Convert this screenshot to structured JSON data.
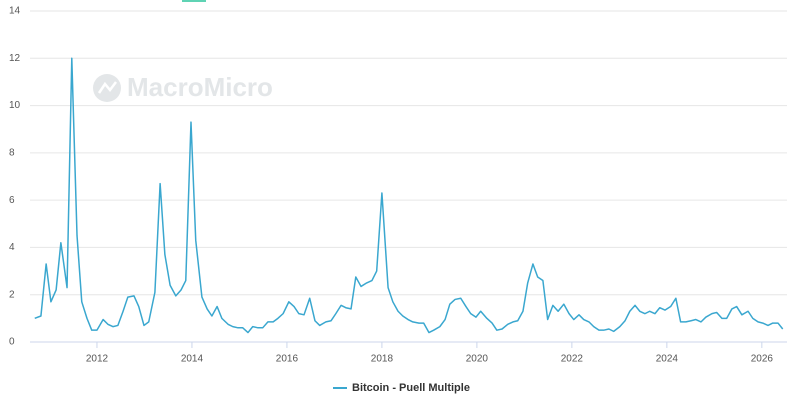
{
  "chart_data": {
    "type": "line",
    "watermark": "MacroMicro",
    "x": [
      2010.69,
      2010.82,
      2010.93,
      2011.03,
      2011.14,
      2011.24,
      2011.37,
      2011.47,
      2011.58,
      2011.68,
      2011.79,
      2011.89,
      2012.0,
      2012.13,
      2012.23,
      2012.34,
      2012.44,
      2012.55,
      2012.65,
      2012.78,
      2012.88,
      2012.99,
      2013.09,
      2013.22,
      2013.33,
      2013.43,
      2013.54,
      2013.66,
      2013.77,
      2013.87,
      2013.98,
      2014.08,
      2014.21,
      2014.32,
      2014.42,
      2014.53,
      2014.63,
      2014.76,
      2014.86,
      2014.97,
      2015.07,
      2015.18,
      2015.28,
      2015.39,
      2015.49,
      2015.6,
      2015.71,
      2015.81,
      2015.92,
      2016.04,
      2016.15,
      2016.25,
      2016.36,
      2016.48,
      2016.59,
      2016.69,
      2016.82,
      2016.93,
      2017.03,
      2017.14,
      2017.24,
      2017.35,
      2017.45,
      2017.56,
      2017.68,
      2017.79,
      2017.89,
      2018.0,
      2018.13,
      2018.23,
      2018.34,
      2018.44,
      2018.55,
      2018.65,
      2018.78,
      2018.88,
      2018.99,
      2019.09,
      2019.22,
      2019.33,
      2019.43,
      2019.54,
      2019.66,
      2019.77,
      2019.87,
      2019.98,
      2020.08,
      2020.21,
      2020.32,
      2020.42,
      2020.53,
      2020.65,
      2020.76,
      2020.86,
      2020.97,
      2021.07,
      2021.18,
      2021.28,
      2021.39,
      2021.49,
      2021.6,
      2021.71,
      2021.83,
      2021.94,
      2022.04,
      2022.15,
      2022.25,
      2022.36,
      2022.46,
      2022.57,
      2022.67,
      2022.78,
      2022.88,
      2023.01,
      2023.12,
      2023.22,
      2023.33,
      2023.43,
      2023.54,
      2023.64,
      2023.75,
      2023.85,
      2023.96,
      2024.08,
      2024.19,
      2024.29,
      2024.4,
      2024.51,
      2024.61,
      2024.72,
      2024.82,
      2024.95,
      2025.05,
      2025.16,
      2025.26,
      2025.37,
      2025.47,
      2025.58,
      2025.71,
      2025.81,
      2025.92,
      2026.02,
      2026.13,
      2026.23,
      2026.34,
      2026.44
    ],
    "series": [
      {
        "name": "Bitcoin - Puell Multiple",
        "color": "#3aa7cf",
        "values": [
          1.0,
          1.1,
          3.3,
          1.7,
          2.2,
          4.2,
          2.3,
          12.0,
          4.5,
          1.7,
          1.0,
          0.5,
          0.5,
          0.95,
          0.75,
          0.65,
          0.7,
          1.3,
          1.9,
          1.95,
          1.5,
          0.7,
          0.85,
          2.1,
          6.7,
          3.7,
          2.4,
          1.95,
          2.2,
          2.6,
          9.3,
          4.3,
          1.9,
          1.4,
          1.1,
          1.5,
          1.0,
          0.75,
          0.65,
          0.6,
          0.6,
          0.4,
          0.65,
          0.6,
          0.6,
          0.85,
          0.85,
          1.0,
          1.2,
          1.7,
          1.5,
          1.2,
          1.15,
          1.85,
          0.9,
          0.7,
          0.85,
          0.9,
          1.2,
          1.55,
          1.45,
          1.4,
          2.75,
          2.35,
          2.5,
          2.6,
          3.0,
          6.3,
          2.3,
          1.7,
          1.3,
          1.1,
          0.95,
          0.85,
          0.8,
          0.8,
          0.4,
          0.5,
          0.65,
          0.95,
          1.6,
          1.8,
          1.85,
          1.5,
          1.2,
          1.05,
          1.3,
          1.0,
          0.8,
          0.5,
          0.55,
          0.75,
          0.85,
          0.9,
          1.3,
          2.5,
          3.3,
          2.75,
          2.6,
          0.95,
          1.55,
          1.3,
          1.6,
          1.2,
          0.95,
          1.15,
          0.95,
          0.85,
          0.65,
          0.5,
          0.5,
          0.55,
          0.45,
          0.65,
          0.9,
          1.3,
          1.55,
          1.3,
          1.2,
          1.3,
          1.2,
          1.45,
          1.35,
          1.5,
          1.85,
          0.85,
          0.85,
          0.9,
          0.95,
          0.85,
          1.05,
          1.2,
          1.25,
          1.0,
          1.0,
          1.4,
          1.5,
          1.15,
          1.3,
          1.0,
          0.85,
          0.8,
          0.7,
          0.8,
          0.8,
          0.55
        ]
      }
    ],
    "xlim": [
      2010.59,
      2026.53
    ],
    "xticks": [
      2012,
      2014,
      2016,
      2018,
      2020,
      2022,
      2024,
      2026
    ],
    "ylim": [
      0,
      14
    ],
    "yticks": [
      0,
      2,
      4,
      6,
      8,
      10,
      12,
      14
    ],
    "grid": true
  }
}
